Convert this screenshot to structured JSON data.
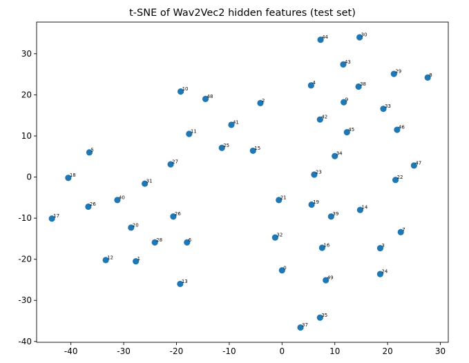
{
  "chart_data": {
    "type": "scatter",
    "title": "t-SNE of Wav2Vec2 hidden features (test set)",
    "xlabel": "",
    "ylabel": "",
    "xlim": [
      -46.5,
      31.5
    ],
    "ylim": [
      -40.2,
      37.7
    ],
    "xticks": [
      -40,
      -30,
      -20,
      -10,
      0,
      10,
      20,
      30
    ],
    "yticks": [
      -40,
      -30,
      -20,
      -10,
      0,
      10,
      20,
      30
    ],
    "grid": false,
    "legend": "none",
    "marker_color": "#1f77b4",
    "points": [
      {
        "label": "0",
        "x": 0.0,
        "y": -22.7
      },
      {
        "label": "1",
        "x": -27.7,
        "y": -20.5
      },
      {
        "label": "2",
        "x": -4.1,
        "y": 18.0
      },
      {
        "label": "3",
        "x": 18.6,
        "y": -17.3
      },
      {
        "label": "4",
        "x": 5.5,
        "y": 22.3
      },
      {
        "label": "5",
        "x": -36.5,
        "y": 6.0
      },
      {
        "label": "6",
        "x": -18.0,
        "y": -15.9
      },
      {
        "label": "7",
        "x": 22.5,
        "y": -13.4
      },
      {
        "label": "8",
        "x": 27.6,
        "y": 24.2
      },
      {
        "label": "9",
        "x": 11.7,
        "y": 18.2
      },
      {
        "label": "10",
        "x": -19.2,
        "y": 20.8
      },
      {
        "label": "11",
        "x": -17.6,
        "y": 10.5
      },
      {
        "label": "12",
        "x": -33.4,
        "y": -20.2
      },
      {
        "label": "13",
        "x": -19.3,
        "y": -26.0
      },
      {
        "label": "14",
        "x": 14.8,
        "y": -8.0
      },
      {
        "label": "15",
        "x": -5.5,
        "y": 6.4
      },
      {
        "label": "16",
        "x": 7.6,
        "y": -17.2
      },
      {
        "label": "17",
        "x": -43.6,
        "y": -10.1
      },
      {
        "label": "18",
        "x": -40.5,
        "y": -0.2
      },
      {
        "label": "19",
        "x": 5.6,
        "y": -6.7
      },
      {
        "label": "20",
        "x": -28.6,
        "y": -12.3
      },
      {
        "label": "21",
        "x": -0.6,
        "y": -5.6
      },
      {
        "label": "22",
        "x": 21.5,
        "y": -0.7
      },
      {
        "label": "23",
        "x": 6.1,
        "y": 0.6
      },
      {
        "label": "24",
        "x": 18.6,
        "y": -23.6
      },
      {
        "label": "25",
        "x": -11.4,
        "y": 7.1
      },
      {
        "label": "26",
        "x": -20.6,
        "y": -9.6
      },
      {
        "label": "26",
        "x": -36.7,
        "y": -7.2
      },
      {
        "label": "27",
        "x": -21.1,
        "y": 3.1
      },
      {
        "label": "28",
        "x": -24.1,
        "y": -15.9
      },
      {
        "label": "29",
        "x": 21.2,
        "y": 25.1
      },
      {
        "label": "30",
        "x": 14.7,
        "y": 34.0
      },
      {
        "label": "31",
        "x": -26.0,
        "y": -1.6
      },
      {
        "label": "32",
        "x": -1.3,
        "y": -14.7
      },
      {
        "label": "33",
        "x": 19.2,
        "y": 16.6
      },
      {
        "label": "34",
        "x": 10.0,
        "y": 5.1
      },
      {
        "label": "35",
        "x": 7.2,
        "y": -34.2
      },
      {
        "label": "37",
        "x": 3.5,
        "y": -36.6
      },
      {
        "label": "38",
        "x": 14.5,
        "y": 22.0
      },
      {
        "label": "39",
        "x": 9.3,
        "y": -9.6
      },
      {
        "label": "40",
        "x": -31.2,
        "y": -5.6
      },
      {
        "label": "41",
        "x": -9.6,
        "y": 12.7
      },
      {
        "label": "42",
        "x": 7.2,
        "y": 14.0
      },
      {
        "label": "43",
        "x": 11.6,
        "y": 27.4
      },
      {
        "label": "44",
        "x": 7.3,
        "y": 33.4
      },
      {
        "label": "45",
        "x": 12.3,
        "y": 10.9
      },
      {
        "label": "46",
        "x": 21.8,
        "y": 11.5
      },
      {
        "label": "47",
        "x": 25.0,
        "y": 2.8
      },
      {
        "label": "48",
        "x": -14.5,
        "y": 19.0
      },
      {
        "label": "49",
        "x": 8.3,
        "y": -25.1
      }
    ]
  }
}
